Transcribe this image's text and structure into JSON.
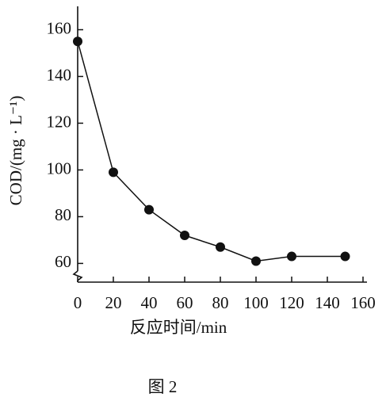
{
  "chart_data": {
    "type": "line",
    "x_label": "反应时间/min",
    "y_label": "COD/(mg · L⁻¹)",
    "caption": "图 2",
    "x": [
      0,
      20,
      40,
      60,
      80,
      100,
      120,
      150
    ],
    "series": [
      {
        "name": "COD",
        "color": "#111111",
        "values": [
          155,
          99,
          83,
          72,
          67,
          61,
          63,
          63
        ]
      }
    ],
    "xlim": [
      0,
      162
    ],
    "xticks": [
      0,
      20,
      40,
      60,
      80,
      100,
      120,
      140,
      160
    ],
    "ylim": [
      52,
      170
    ],
    "yticks": [
      60,
      80,
      100,
      120,
      140,
      160
    ],
    "grid": false
  }
}
